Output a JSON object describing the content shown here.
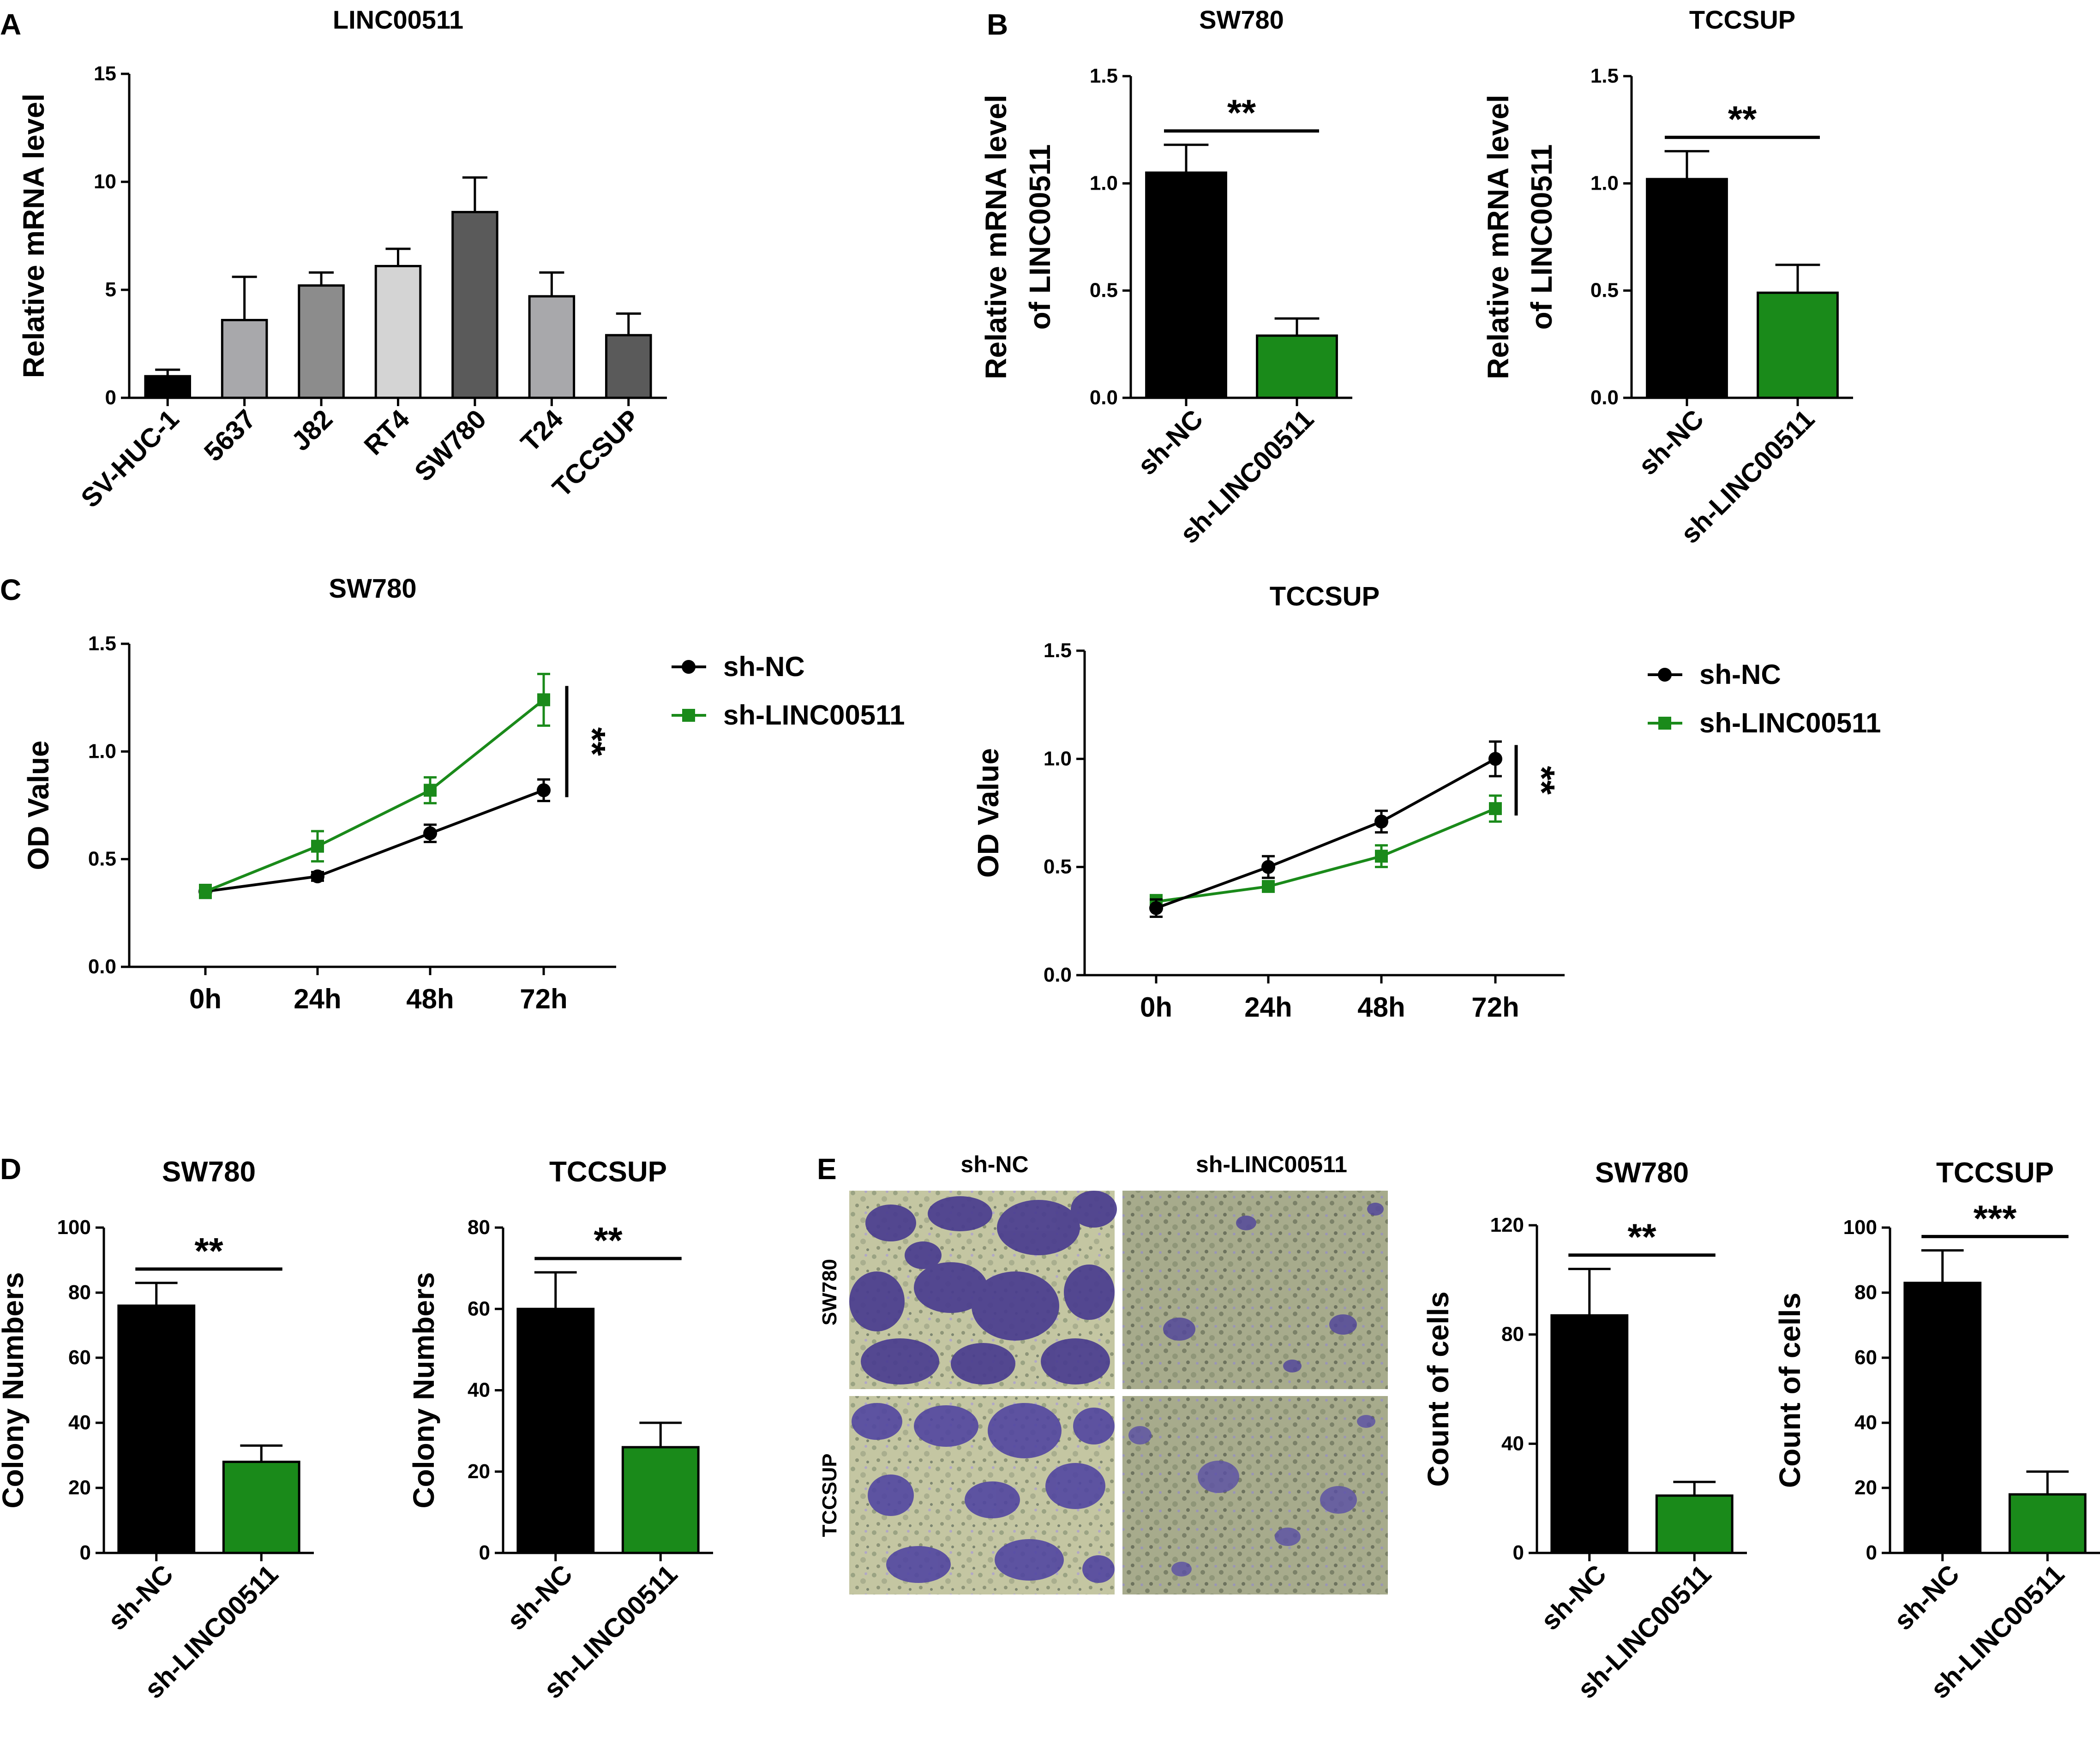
{
  "panel_letters": [
    "A",
    "B",
    "C",
    "D",
    "E"
  ],
  "colors": {
    "black": "#000000",
    "green": "#1a8a1a",
    "dark_gray": "#5a5a5a",
    "mid_gray": "#8c8c8c",
    "light_gray": "#a8a8ab",
    "pale_gray": "#d4d4d4"
  },
  "micrographs": {
    "col_labels": [
      "sh-NC",
      "sh-LINC00511"
    ],
    "row_labels": [
      "SW780",
      "TCCSUP"
    ]
  },
  "chart_data": [
    {
      "id": "A",
      "type": "bar",
      "title": "LINC00511",
      "ylabel": "Relative mRNA level",
      "xlabel": "",
      "ylim": [
        0,
        15
      ],
      "yticks": [
        0,
        5,
        10,
        15
      ],
      "categories": [
        "SV-HUC-1",
        "5637",
        "J82",
        "RT4",
        "SW780",
        "T24",
        "TCCSUP"
      ],
      "values": [
        1.0,
        3.6,
        5.2,
        6.1,
        8.6,
        4.7,
        2.9
      ],
      "errors": [
        0.3,
        2.0,
        0.6,
        0.8,
        1.6,
        1.1,
        1.0
      ],
      "colors": [
        "#000000",
        "#a8a8ab",
        "#8c8c8c",
        "#d4d4d4",
        "#5a5a5a",
        "#a8a8ab",
        "#5a5a5a"
      ]
    },
    {
      "id": "B1",
      "type": "bar",
      "title": "SW780",
      "ylabel": [
        "Relative mRNA level",
        "of LINC00511"
      ],
      "ylim": [
        0,
        1.5
      ],
      "yticks": [
        0.0,
        0.5,
        1.0,
        1.5
      ],
      "ytick_labels": [
        "0.0",
        "0.5",
        "1.0",
        "1.5"
      ],
      "categories": [
        "sh-NC",
        "sh-LINC00511"
      ],
      "values": [
        1.05,
        0.29
      ],
      "errors": [
        0.13,
        0.08
      ],
      "colors": [
        "#000000",
        "#1a8a1a"
      ],
      "significance": "**"
    },
    {
      "id": "B2",
      "type": "bar",
      "title": "TCCSUP",
      "ylabel": [
        "Relative mRNA level",
        "of LINC00511"
      ],
      "ylim": [
        0,
        1.5
      ],
      "yticks": [
        0.0,
        0.5,
        1.0,
        1.5
      ],
      "ytick_labels": [
        "0.0",
        "0.5",
        "1.0",
        "1.5"
      ],
      "categories": [
        "sh-NC",
        "sh-LINC00511"
      ],
      "values": [
        1.02,
        0.49
      ],
      "errors": [
        0.13,
        0.13
      ],
      "colors": [
        "#000000",
        "#1a8a1a"
      ],
      "significance": "**"
    },
    {
      "id": "C1",
      "type": "line",
      "title": "SW780",
      "ylabel": "OD Value",
      "ylim": [
        0,
        1.5
      ],
      "yticks": [
        0.0,
        0.5,
        1.0,
        1.5
      ],
      "ytick_labels": [
        "0.0",
        "0.5",
        "1.0",
        "1.5"
      ],
      "x": [
        "0h",
        "24h",
        "48h",
        "72h"
      ],
      "series": [
        {
          "name": "sh-NC",
          "marker": "circle",
          "color": "#000000",
          "values": [
            0.35,
            0.42,
            0.62,
            0.82
          ],
          "errors": [
            0.03,
            0.02,
            0.04,
            0.05
          ]
        },
        {
          "name": "sh-LINC00511",
          "marker": "square",
          "color": "#1a8a1a",
          "values": [
            0.35,
            0.56,
            0.82,
            1.24
          ],
          "errors": [
            0.03,
            0.07,
            0.06,
            0.12
          ]
        }
      ],
      "legend_order": [
        0,
        1
      ],
      "significance": "**"
    },
    {
      "id": "C2",
      "type": "line",
      "title": "TCCSUP",
      "ylabel": "OD Value",
      "ylim": [
        0,
        1.5
      ],
      "yticks": [
        0.0,
        0.5,
        1.0,
        1.5
      ],
      "ytick_labels": [
        "0.0",
        "0.5",
        "1.0",
        "1.5"
      ],
      "x": [
        "0h",
        "24h",
        "48h",
        "72h"
      ],
      "series": [
        {
          "name": "sh-LINC00511",
          "marker": "square",
          "color": "#1a8a1a",
          "values": [
            0.34,
            0.41,
            0.55,
            0.77
          ],
          "errors": [
            0.03,
            0.02,
            0.05,
            0.06
          ]
        },
        {
          "name": "sh-NC",
          "marker": "circle",
          "color": "#000000",
          "values": [
            0.31,
            0.5,
            0.71,
            1.0
          ],
          "errors": [
            0.04,
            0.05,
            0.05,
            0.08
          ]
        }
      ],
      "legend_order": [
        1,
        0
      ],
      "significance": "**"
    },
    {
      "id": "D1",
      "type": "bar",
      "title": "SW780",
      "ylabel": "Colony Numbers",
      "ylim": [
        0,
        100
      ],
      "yticks": [
        0,
        20,
        40,
        60,
        80,
        100
      ],
      "categories": [
        "sh-NC",
        "sh-LINC00511"
      ],
      "values": [
        76,
        28
      ],
      "errors": [
        7,
        5
      ],
      "colors": [
        "#000000",
        "#1a8a1a"
      ],
      "significance": "**"
    },
    {
      "id": "D2",
      "type": "bar",
      "title": "TCCSUP",
      "ylabel": "Colony Numbers",
      "ylim": [
        0,
        80
      ],
      "yticks": [
        0,
        20,
        40,
        60,
        80
      ],
      "categories": [
        "sh-NC",
        "sh-LINC00511"
      ],
      "values": [
        60,
        26
      ],
      "errors": [
        9,
        6
      ],
      "colors": [
        "#000000",
        "#1a8a1a"
      ],
      "significance": "**"
    },
    {
      "id": "E1",
      "type": "bar",
      "title": "SW780",
      "ylabel": "Count of cells",
      "ylim": [
        0,
        120
      ],
      "yticks": [
        0,
        40,
        80,
        120
      ],
      "categories": [
        "sh-NC",
        "sh-LINC00511"
      ],
      "values": [
        87,
        21
      ],
      "errors": [
        17,
        5
      ],
      "colors": [
        "#000000",
        "#1a8a1a"
      ],
      "significance": "**"
    },
    {
      "id": "E2",
      "type": "bar",
      "title": "TCCSUP",
      "ylabel": "Count of cells",
      "ylim": [
        0,
        100
      ],
      "yticks": [
        0,
        20,
        40,
        60,
        80,
        100
      ],
      "categories": [
        "sh-NC",
        "sh-LINC00511"
      ],
      "values": [
        83,
        18
      ],
      "errors": [
        10,
        7
      ],
      "colors": [
        "#000000",
        "#1a8a1a"
      ],
      "significance": "***"
    }
  ]
}
